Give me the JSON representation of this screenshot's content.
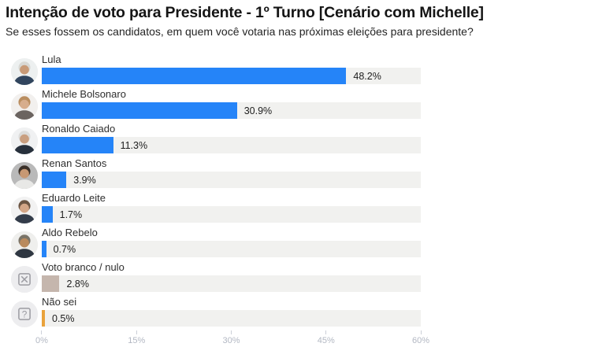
{
  "header": {
    "title": "Intenção de voto para Presidente - 1º Turno [Cenário com Michelle]",
    "subtitle": "Se esses fossem os candidatos, em quem você votaria nas próximas eleições para presidente?"
  },
  "chart_data": {
    "type": "bar",
    "orientation": "horizontal",
    "title": "Intenção de voto para Presidente - 1º Turno [Cenário com Michelle]",
    "subtitle": "Se esses fossem os candidatos, em quem você votaria nas próximas eleições para presidente?",
    "xlabel": "",
    "ylabel": "",
    "xlim": [
      0,
      60
    ],
    "x_ticks": [
      "0%",
      "15%",
      "30%",
      "45%",
      "60%"
    ],
    "grid": false,
    "legend": false,
    "categories": [
      "Lula",
      "Michele Bolsonaro",
      "Ronaldo Caiado",
      "Renan Santos",
      "Eduardo Leite",
      "Aldo Rebelo",
      "Voto branco / nulo",
      "Não sei"
    ],
    "values": [
      48.2,
      30.9,
      11.3,
      3.9,
      1.7,
      0.7,
      2.8,
      0.5
    ],
    "colors": {
      "candidate_bar": "#2584f8",
      "blank_null_bar": "#c5b6ad",
      "dont_know_bar": "#e9a23b",
      "bar_track": "#f1f1ef",
      "axis_text": "#b3b8c3"
    },
    "rows": [
      {
        "label": "Lula",
        "value": 48.2,
        "value_label": "48.2%",
        "bar_color": "#2584f8",
        "avatar": {
          "kind": "photo",
          "icon": "lula-avatar",
          "bg": "#edf0f0",
          "hair": "#d8d8d4",
          "skin": "#c89a77",
          "suit": "#31455e"
        }
      },
      {
        "label": "Michele Bolsonaro",
        "value": 30.9,
        "value_label": "30.9%",
        "bar_color": "#2584f8",
        "avatar": {
          "kind": "photo",
          "icon": "michele-bolsonaro-avatar",
          "bg": "#f2f0ee",
          "hair": "#b98d5f",
          "skin": "#d7ad8d",
          "suit": "#6b6460"
        }
      },
      {
        "label": "Ronaldo Caiado",
        "value": 11.3,
        "value_label": "11.3%",
        "bar_color": "#2584f8",
        "avatar": {
          "kind": "photo",
          "icon": "ronaldo-caiado-avatar",
          "bg": "#f0f1f2",
          "hair": "#dcdcda",
          "skin": "#c99f80",
          "suit": "#27303c"
        }
      },
      {
        "label": "Renan Santos",
        "value": 3.9,
        "value_label": "3.9%",
        "bar_color": "#2584f8",
        "avatar": {
          "kind": "photo",
          "icon": "renan-santos-avatar",
          "bg": "#b9b9b9",
          "hair": "#3a3028",
          "skin": "#c79873",
          "suit": "#e8e8e6"
        }
      },
      {
        "label": "Eduardo Leite",
        "value": 1.7,
        "value_label": "1.7%",
        "bar_color": "#2584f8",
        "avatar": {
          "kind": "photo",
          "icon": "eduardo-leite-avatar",
          "bg": "#f2f2f2",
          "hair": "#6b5543",
          "skin": "#d3a687",
          "suit": "#333c4a"
        }
      },
      {
        "label": "Aldo Rebelo",
        "value": 0.7,
        "value_label": "0.7%",
        "bar_color": "#2584f8",
        "avatar": {
          "kind": "photo",
          "icon": "aldo-rebelo-avatar",
          "bg": "#efefed",
          "hair": "#7a7468",
          "skin": "#b98a5e",
          "suit": "#2f3742"
        }
      },
      {
        "label": "Voto branco / nulo",
        "value": 2.8,
        "value_label": "2.8%",
        "bar_color": "#c5b6ad",
        "avatar": {
          "kind": "x-box",
          "icon": "blank-vote-x-icon",
          "bg": "#ededef",
          "fg": "#9b9ba1"
        }
      },
      {
        "label": "Não sei",
        "value": 0.5,
        "value_label": "0.5%",
        "bar_color": "#e9a23b",
        "avatar": {
          "kind": "question-box",
          "icon": "dont-know-question-icon",
          "bg": "#ededef",
          "fg": "#9b9ba1"
        }
      }
    ]
  }
}
